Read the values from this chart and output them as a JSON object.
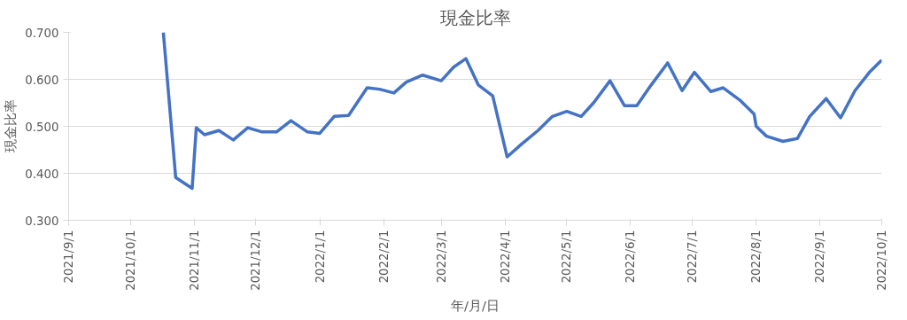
{
  "chart_data": {
    "type": "line",
    "title": "現金比率",
    "xlabel": "年/月/日",
    "ylabel": "現金比率",
    "x": [
      "2021-10-17",
      "2021-10-23",
      "2021-10-31",
      "2021-11-02",
      "2021-11-06",
      "2021-11-13",
      "2021-11-20",
      "2021-11-27",
      "2021-12-04",
      "2021-12-11",
      "2021-12-18",
      "2021-12-26",
      "2022-01-01",
      "2022-01-08",
      "2022-01-15",
      "2022-01-24",
      "2022-01-30",
      "2022-02-06",
      "2022-02-12",
      "2022-02-20",
      "2022-03-01",
      "2022-03-07",
      "2022-03-13",
      "2022-03-19",
      "2022-03-26",
      "2022-04-02",
      "2022-04-09",
      "2022-04-17",
      "2022-04-24",
      "2022-05-01",
      "2022-05-08",
      "2022-05-14",
      "2022-05-22",
      "2022-05-29",
      "2022-06-04",
      "2022-06-11",
      "2022-06-19",
      "2022-06-26",
      "2022-07-02",
      "2022-07-10",
      "2022-07-16",
      "2022-07-24",
      "2022-07-31",
      "2022-08-01",
      "2022-08-06",
      "2022-08-14",
      "2022-08-21",
      "2022-08-27",
      "2022-09-04",
      "2022-09-11",
      "2022-09-18",
      "2022-09-25",
      "2022-10-01"
    ],
    "series": [
      {
        "color": "#4472c4",
        "values": [
          0.7,
          0.391,
          0.368,
          0.497,
          0.482,
          0.491,
          0.471,
          0.497,
          0.488,
          0.488,
          0.512,
          0.488,
          0.485,
          0.521,
          0.523,
          0.582,
          0.579,
          0.571,
          0.594,
          0.609,
          0.597,
          0.626,
          0.644,
          0.588,
          0.565,
          0.435,
          0.462,
          0.491,
          0.521,
          0.532,
          0.521,
          0.55,
          0.597,
          0.544,
          0.544,
          0.588,
          0.635,
          0.576,
          0.615,
          0.574,
          0.582,
          0.556,
          0.526,
          0.5,
          0.479,
          0.468,
          0.474,
          0.521,
          0.559,
          0.518,
          0.576,
          0.615,
          0.641
        ]
      }
    ],
    "xlim": [
      "2021-09-01",
      "2022-10-01"
    ],
    "xticks": [
      {
        "value": "2021-09-01",
        "label": "2021/9/1"
      },
      {
        "value": "2021-10-01",
        "label": "2021/10/1"
      },
      {
        "value": "2021-11-01",
        "label": "2021/11/1"
      },
      {
        "value": "2021-12-01",
        "label": "2021/12/1"
      },
      {
        "value": "2022-01-01",
        "label": "2022/1/1"
      },
      {
        "value": "2022-02-01",
        "label": "2022/2/1"
      },
      {
        "value": "2022-03-01",
        "label": "2022/3/1"
      },
      {
        "value": "2022-04-01",
        "label": "2022/4/1"
      },
      {
        "value": "2022-05-01",
        "label": "2022/5/1"
      },
      {
        "value": "2022-06-01",
        "label": "2022/6/1"
      },
      {
        "value": "2022-07-01",
        "label": "2022/7/1"
      },
      {
        "value": "2022-08-01",
        "label": "2022/8/1"
      },
      {
        "value": "2022-09-01",
        "label": "2022/9/1"
      },
      {
        "value": "2022-10-01",
        "label": "2022/10/1"
      }
    ],
    "ylim": [
      0.3,
      0.7
    ],
    "yticks": [
      {
        "value": 0.3,
        "label": "0.300"
      },
      {
        "value": 0.4,
        "label": "0.400"
      },
      {
        "value": 0.5,
        "label": "0.500"
      },
      {
        "value": 0.6,
        "label": "0.600"
      },
      {
        "value": 0.7,
        "label": "0.700"
      }
    ],
    "grid": "y",
    "line_style": "solid",
    "marker": "none"
  }
}
